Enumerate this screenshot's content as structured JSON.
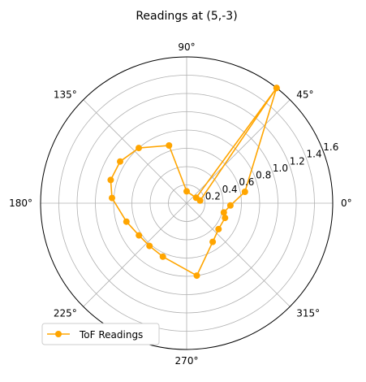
{
  "chart_data": {
    "type": "line",
    "projection": "polar",
    "title": "Readings at (5,-3)",
    "angle_unit": "degrees",
    "angle_ticks": [
      0,
      45,
      90,
      135,
      180,
      225,
      270,
      315
    ],
    "angle_tick_labels": [
      "0°",
      "45°",
      "90°",
      "135°",
      "180°",
      "225°",
      "270°",
      "315°"
    ],
    "rmax": 1.6,
    "radial_ticks": [
      0.2,
      0.4,
      0.6,
      0.8,
      1.0,
      1.2,
      1.4,
      1.6
    ],
    "radial_tick_labels": [
      "0.2",
      "0.4",
      "0.6",
      "0.8",
      "1.0",
      "1.2",
      "1.4",
      "1.6"
    ],
    "radial_label_angle": 22.5,
    "grid": true,
    "legend": "lower-left",
    "series": [
      {
        "name": "ToF Readings",
        "color": "#ffa500",
        "marker": "circle",
        "points": [
          {
            "theta": 11,
            "r": 0.15
          },
          {
            "theta": 52,
            "r": 1.6
          },
          {
            "theta": 30,
            "r": 0.12
          },
          {
            "theta": 90,
            "r": 0.13
          },
          {
            "theta": 107,
            "r": 0.66
          },
          {
            "theta": 131,
            "r": 0.8
          },
          {
            "theta": 148,
            "r": 0.86
          },
          {
            "theta": 163,
            "r": 0.87
          },
          {
            "theta": 176,
            "r": 0.82
          },
          {
            "theta": 197,
            "r": 0.69
          },
          {
            "theta": 214,
            "r": 0.63
          },
          {
            "theta": 229,
            "r": 0.62
          },
          {
            "theta": 246,
            "r": 0.64
          },
          {
            "theta": 278,
            "r": 0.8
          },
          {
            "theta": 304,
            "r": 0.51
          },
          {
            "theta": 321,
            "r": 0.45
          },
          {
            "theta": 339,
            "r": 0.45
          },
          {
            "theta": 346,
            "r": 0.42
          },
          {
            "theta": 357,
            "r": 0.48
          },
          {
            "theta": 11,
            "r": 0.65
          },
          {
            "theta": 52,
            "r": 1.6
          }
        ]
      }
    ]
  }
}
